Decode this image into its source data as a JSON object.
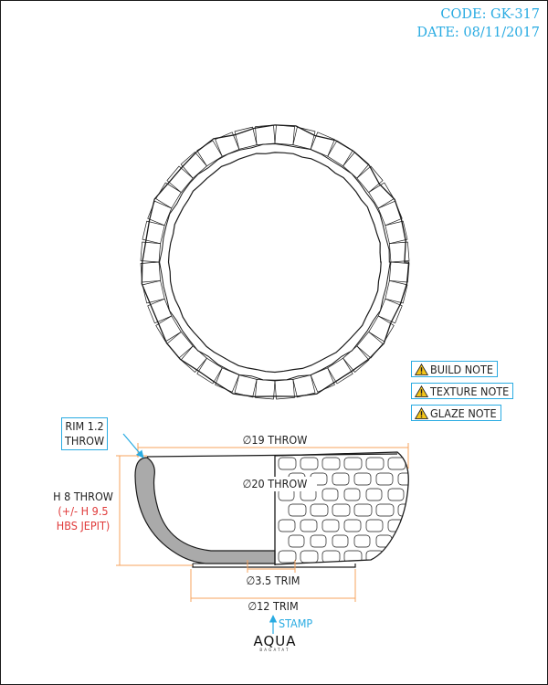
{
  "header": {
    "code": "CODE: GK-317",
    "date": "DATE: 08/11/2017"
  },
  "notes": [
    {
      "label": "BUILD NOTE",
      "icon": "warning-icon"
    },
    {
      "label": "TEXTURE NOTE",
      "icon": "warning-icon"
    },
    {
      "label": "GLAZE NOTE",
      "icon": "warning-icon"
    }
  ],
  "callouts": {
    "rim_line1": "RIM 1.2",
    "rim_line2": "THROW",
    "height_line1": "H 8 THROW",
    "height_line2": "(+/- H 9.5",
    "height_line3": "HBS JEPIT)",
    "stamp": "STAMP"
  },
  "dimensions": {
    "outer_diameter": "∅19 THROW",
    "inner_diameter": "∅20 THROW",
    "foot_inner": "∅3.5 TRIM",
    "foot_outer": "∅12 TRIM"
  },
  "brand": {
    "name": "AQUA",
    "subtitle": "BAGATAT"
  },
  "colors": {
    "accent": "#29abe2",
    "dimension": "#f7a35c",
    "warning": "#e03a3a",
    "line": "#1a1a1a",
    "wall_fill": "#aaaaaa"
  }
}
